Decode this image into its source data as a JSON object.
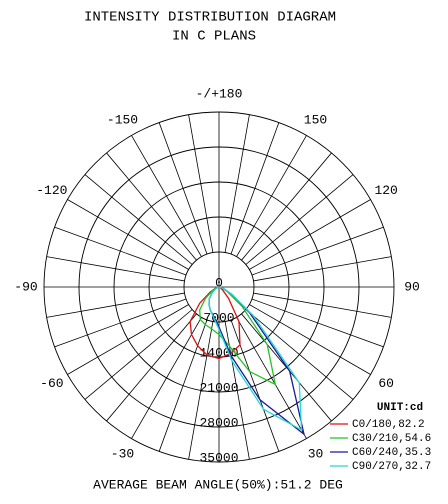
{
  "chart_data": {
    "type": "polar",
    "title": "INTENSITY DISTRIBUTION DIAGRAM",
    "subtitle": "IN C PLANS",
    "unit_label": "UNIT:cd",
    "footer": "AVERAGE BEAM ANGLE(50%):51.2 DEG",
    "ylim": [
      0,
      35000
    ],
    "yticks": [
      0,
      7000,
      14000,
      21000,
      28000,
      35000
    ],
    "angle_ticks": [
      {
        "value": 180,
        "label": "-/+180"
      },
      150,
      120,
      90,
      60,
      30,
      -150,
      -120,
      -90,
      -60,
      -30
    ],
    "x": [
      -90,
      -80,
      -70,
      -60,
      -50,
      -40,
      -30,
      -20,
      -10,
      0,
      10,
      20,
      30,
      40,
      50,
      60,
      70,
      80,
      90
    ],
    "series": [
      {
        "name": "C0/180,82.2",
        "color": "#e01010",
        "values": [
          0,
          300,
          800,
          2000,
          5000,
          9000,
          11000,
          12500,
          13800,
          14300,
          13500,
          12300,
          8000,
          3000,
          1000,
          400,
          200,
          100,
          0
        ]
      },
      {
        "name": "C30/210,54.6",
        "color": "#22c422",
        "values": [
          0,
          200,
          600,
          1500,
          3500,
          6000,
          7500,
          8000,
          8500,
          9500,
          12000,
          18000,
          22500,
          15000,
          6000,
          2000,
          800,
          300,
          0
        ]
      },
      {
        "name": "C60/240,35.3",
        "color": "#1a1a9a",
        "values": [
          0,
          100,
          300,
          800,
          1800,
          3000,
          4000,
          5000,
          6000,
          8000,
          14000,
          24000,
          34000,
          22000,
          8000,
          3000,
          1000,
          300,
          0
        ]
      },
      {
        "name": "C90/270,32.7",
        "color": "#22d8d8",
        "values": [
          0,
          100,
          300,
          800,
          1800,
          3000,
          4000,
          5000,
          6200,
          8500,
          15000,
          26000,
          33000,
          25000,
          9000,
          3000,
          1000,
          300,
          0
        ]
      }
    ]
  }
}
